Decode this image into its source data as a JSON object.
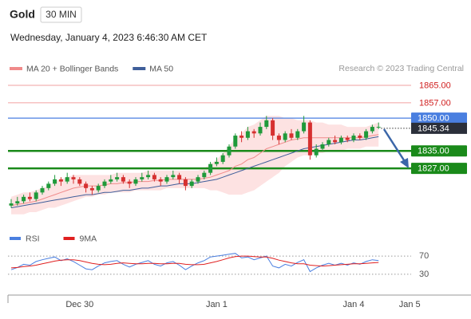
{
  "chart_data": [
    {
      "type": "candlestick",
      "title": "Gold",
      "interval": "30 MIN",
      "subtitle": "Wednesday, January 4, 2023 6:46:30 AM CET",
      "source": "Research © 2023 Trading Central",
      "up_color": "#1f9a3a",
      "down_color": "#d63030",
      "ylim": [
        1803,
        1869
      ],
      "open": [
        1810,
        1811,
        1812,
        1814,
        1813,
        1816,
        1818,
        1820,
        1822,
        1821,
        1823,
        1822,
        1820,
        1818,
        1817,
        1819,
        1821,
        1822,
        1823,
        1821,
        1820,
        1822,
        1823,
        1824,
        1822,
        1821,
        1823,
        1824,
        1822,
        1819,
        1821,
        1823,
        1825,
        1829,
        1830,
        1833,
        1837,
        1842,
        1841,
        1844,
        1843,
        1846,
        1849,
        1842,
        1840,
        1843,
        1841,
        1844,
        1848,
        1833,
        1836,
        1838,
        1840,
        1839,
        1841,
        1840,
        1842,
        1841,
        1844,
        1846,
        null,
        null,
        null,
        null,
        null
      ],
      "high": [
        1813,
        1814,
        1815,
        1816,
        1817,
        1819,
        1821,
        1824,
        1823,
        1825,
        1824,
        1823,
        1821,
        1819,
        1820,
        1822,
        1824,
        1825,
        1824,
        1822,
        1823,
        1825,
        1826,
        1825,
        1823,
        1824,
        1826,
        1825,
        1823,
        1822,
        1824,
        1826,
        1830,
        1832,
        1834,
        1838,
        1843,
        1844,
        1846,
        1845,
        1848,
        1851,
        1850,
        1843,
        1844,
        1845,
        1845,
        1851,
        1849,
        1838,
        1839,
        1841,
        1842,
        1842,
        1842,
        1843,
        1843,
        1845,
        1847,
        1848,
        null,
        null,
        null,
        null,
        null
      ],
      "low": [
        1809,
        1810,
        1811,
        1812,
        1812,
        1815,
        1817,
        1819,
        1819,
        1820,
        1820,
        1819,
        1816,
        1815,
        1816,
        1818,
        1820,
        1821,
        1820,
        1818,
        1819,
        1821,
        1822,
        1821,
        1819,
        1820,
        1822,
        1820,
        1817,
        1818,
        1820,
        1822,
        1824,
        1828,
        1829,
        1832,
        1836,
        1839,
        1840,
        1841,
        1842,
        1845,
        1840,
        1838,
        1839,
        1840,
        1840,
        1843,
        1831,
        1832,
        1835,
        1837,
        1838,
        1838,
        1839,
        1839,
        1840,
        1840,
        1843,
        1845,
        null,
        null,
        null,
        null,
        null
      ],
      "close": [
        1811,
        1812,
        1814,
        1813,
        1816,
        1818,
        1820,
        1822,
        1821,
        1823,
        1822,
        1820,
        1818,
        1817,
        1819,
        1821,
        1822,
        1823,
        1821,
        1820,
        1822,
        1823,
        1824,
        1822,
        1821,
        1823,
        1824,
        1822,
        1819,
        1821,
        1823,
        1825,
        1829,
        1830,
        1833,
        1837,
        1842,
        1841,
        1844,
        1843,
        1846,
        1849,
        1842,
        1840,
        1843,
        1841,
        1844,
        1848,
        1833,
        1836,
        1838,
        1840,
        1839,
        1841,
        1840,
        1842,
        1841,
        1844,
        1846,
        1846,
        null,
        null,
        null,
        null,
        null
      ],
      "overlays": [
        {
          "name": "MA 20 + Bollinger Bands",
          "color": "#f08a8a",
          "band_color": "#fde2e2",
          "values": [
            1810,
            1810.5,
            1811,
            1811.5,
            1812,
            1813,
            1814,
            1815,
            1816,
            1817,
            1818,
            1818.5,
            1819,
            1819,
            1819,
            1819.5,
            1820,
            1820,
            1820.5,
            1820.5,
            1821,
            1821,
            1821,
            1821.5,
            1821.5,
            1822,
            1822,
            1822,
            1822,
            1822,
            1822,
            1822.5,
            1823,
            1824,
            1825,
            1826,
            1828,
            1829,
            1831,
            1832,
            1834,
            1836,
            1837,
            1838,
            1839,
            1840,
            1840.5,
            1841,
            1841,
            1841,
            1841,
            1841,
            1841,
            1841,
            1841,
            1841,
            1841,
            1841.5,
            1842,
            1842.5,
            null,
            null,
            null,
            null,
            null
          ],
          "upper": [
            1814,
            1815,
            1816,
            1816,
            1817,
            1818,
            1819,
            1821,
            1822,
            1823,
            1824,
            1824,
            1824,
            1824,
            1824,
            1824,
            1824,
            1825,
            1825,
            1825,
            1825,
            1825,
            1826,
            1826,
            1826,
            1826,
            1826,
            1826,
            1826,
            1826,
            1826,
            1827,
            1829,
            1831,
            1834,
            1837,
            1841,
            1843,
            1846,
            1847,
            1849,
            1851,
            1851,
            1851,
            1850,
            1850,
            1849,
            1849,
            1849,
            1848,
            1848,
            1847,
            1847,
            1847,
            1846,
            1846,
            1846,
            1846,
            1847,
            1848,
            null,
            null,
            null,
            null,
            null
          ],
          "lower": [
            1806,
            1806,
            1806,
            1807,
            1807,
            1808,
            1809,
            1809,
            1810,
            1811,
            1812,
            1813,
            1814,
            1814,
            1815,
            1815,
            1816,
            1816,
            1816,
            1816,
            1817,
            1817,
            1817,
            1817,
            1817,
            1818,
            1818,
            1818,
            1818,
            1818,
            1818,
            1818,
            1817,
            1817,
            1816,
            1815,
            1815,
            1815,
            1816,
            1817,
            1819,
            1821,
            1823,
            1825,
            1828,
            1830,
            1832,
            1833,
            1833,
            1834,
            1834,
            1835,
            1835,
            1835,
            1836,
            1836,
            1836,
            1837,
            1837,
            1837,
            null,
            null,
            null,
            null,
            null
          ]
        },
        {
          "name": "MA 50",
          "color": "#3f5e9a",
          "values": [
            1809,
            1809.5,
            1810,
            1810.5,
            1811,
            1811.5,
            1812,
            1812.5,
            1813,
            1813.5,
            1814,
            1814.5,
            1815,
            1815,
            1815.5,
            1816,
            1816,
            1816.5,
            1817,
            1817,
            1817.5,
            1818,
            1818,
            1818.5,
            1819,
            1819,
            1819.5,
            1820,
            1820,
            1820,
            1820.5,
            1821,
            1821.5,
            1822,
            1823,
            1824,
            1825,
            1826,
            1827,
            1828,
            1829,
            1830,
            1831,
            1832,
            1833,
            1834,
            1835,
            1836,
            1836.5,
            1837,
            1837.5,
            1838,
            1838.5,
            1839,
            1839.5,
            1840,
            1840,
            1840.5,
            1841,
            1841.5,
            null,
            null,
            null,
            null,
            null
          ]
        }
      ],
      "levels": [
        {
          "value": 1865,
          "label": "1865.00",
          "color": "#f2a0a0",
          "text_color": "#d02020",
          "box": false,
          "width": 1
        },
        {
          "value": 1857,
          "label": "1857.00",
          "color": "#f2a0a0",
          "text_color": "#d02020",
          "box": false,
          "width": 1
        },
        {
          "value": 1850,
          "label": "1850.00",
          "color": "#4a7fe0",
          "text_color": "#ffffff",
          "box": true,
          "width": 1.2
        },
        {
          "value": 1835,
          "label": "1835.00",
          "color": "#1a8a1a",
          "text_color": "#ffffff",
          "box": true,
          "width": 2.5
        },
        {
          "value": 1827,
          "label": "1827.00",
          "color": "#1a8a1a",
          "text_color": "#ffffff",
          "box": true,
          "width": 2.5
        }
      ],
      "last_price": {
        "value": 1845.34,
        "label": "1845.34",
        "color": "#2b2f3a"
      }
    },
    {
      "type": "line",
      "categories": [
        null,
        null,
        null,
        null,
        null,
        null,
        null,
        null,
        null,
        null,
        null,
        "Dec 30",
        null,
        null,
        null,
        null,
        null,
        null,
        null,
        null,
        null,
        null,
        null,
        null,
        null,
        null,
        null,
        null,
        null,
        null,
        null,
        null,
        null,
        "Jan 1",
        null,
        null,
        null,
        null,
        null,
        null,
        null,
        null,
        null,
        null,
        null,
        null,
        null,
        null,
        null,
        null,
        null,
        null,
        null,
        null,
        null,
        "Jan 4",
        null,
        null,
        null,
        null,
        null,
        null,
        null,
        null,
        "Jan 5"
      ],
      "ylim": [
        0,
        100
      ],
      "yticks": [
        30,
        70
      ],
      "series": [
        {
          "name": "RSI",
          "color": "#4a7fe0",
          "values": [
            40,
            45,
            52,
            50,
            58,
            62,
            65,
            68,
            60,
            64,
            58,
            50,
            42,
            40,
            48,
            55,
            58,
            60,
            52,
            46,
            52,
            56,
            60,
            52,
            48,
            55,
            58,
            50,
            40,
            48,
            55,
            60,
            68,
            70,
            72,
            74,
            76,
            66,
            68,
            62,
            66,
            70,
            48,
            44,
            52,
            48,
            56,
            62,
            36,
            44,
            50,
            54,
            50,
            54,
            50,
            55,
            52,
            58,
            62,
            60,
            null,
            null,
            null,
            null,
            null
          ]
        },
        {
          "name": "9MA",
          "color": "#e02020",
          "values": [
            44,
            45,
            47,
            48,
            50,
            53,
            56,
            59,
            61,
            62,
            62,
            60,
            57,
            54,
            52,
            51,
            52,
            54,
            55,
            54,
            53,
            53,
            54,
            54,
            53,
            53,
            54,
            54,
            52,
            51,
            51,
            52,
            55,
            58,
            62,
            66,
            69,
            70,
            70,
            69,
            68,
            68,
            65,
            61,
            58,
            55,
            53,
            53,
            50,
            49,
            48,
            49,
            50,
            51,
            52,
            53,
            53,
            54,
            55,
            56,
            null,
            null,
            null,
            null,
            null
          ]
        }
      ]
    }
  ]
}
